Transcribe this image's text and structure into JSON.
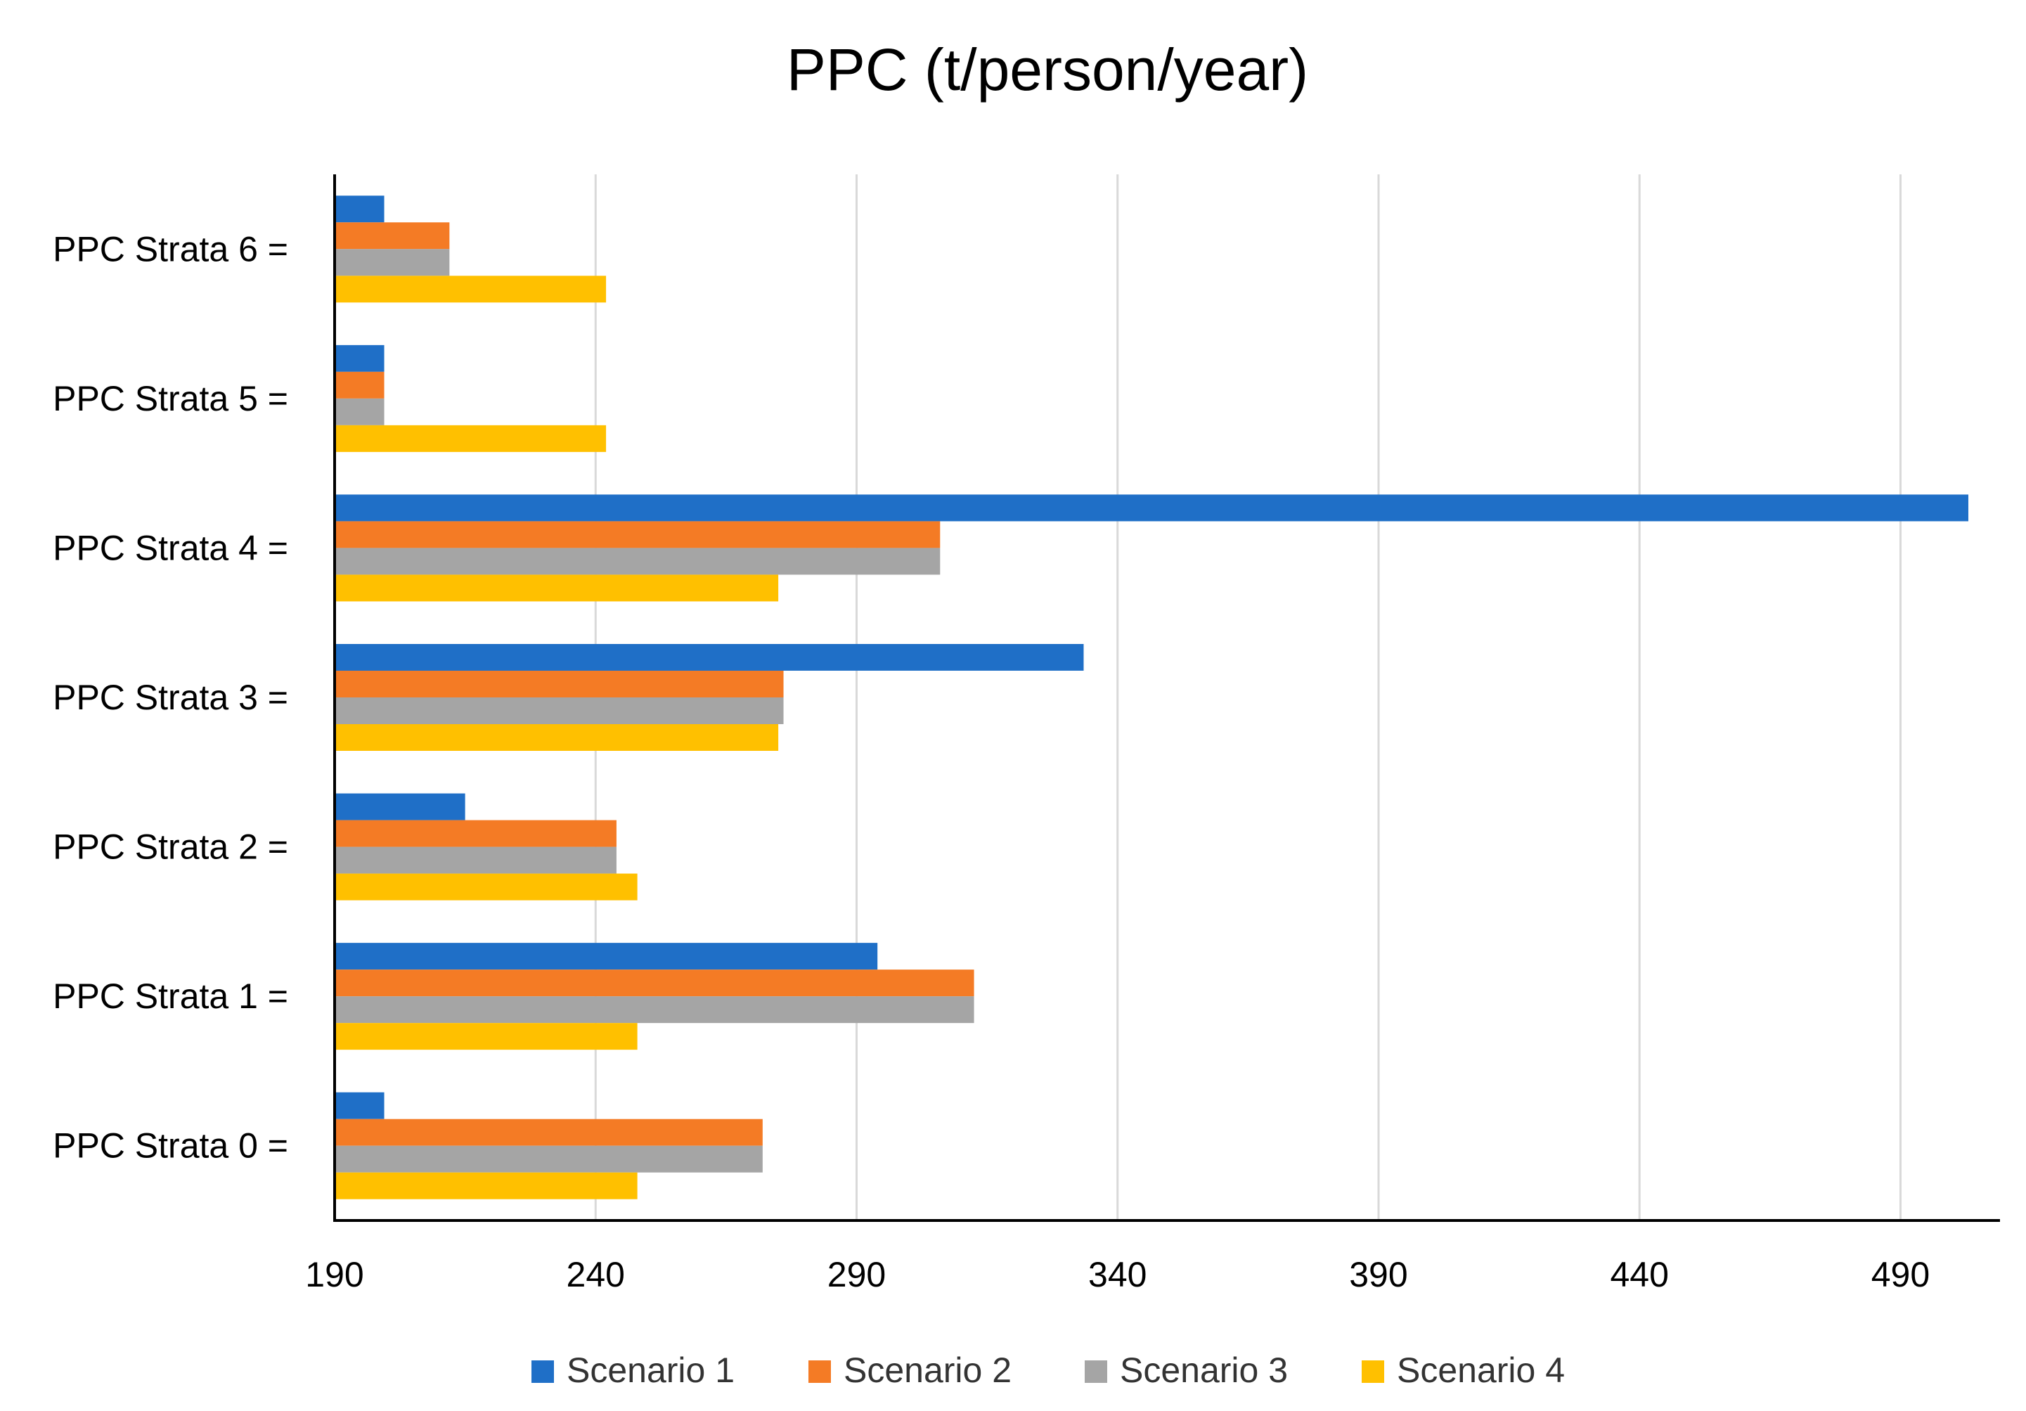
{
  "chart_data": {
    "type": "bar",
    "orientation": "horizontal",
    "title": "PPC (t/person/year)",
    "xlabel": "",
    "ylabel": "",
    "xlim": [
      190,
      503
    ],
    "xticks": [
      190,
      240,
      290,
      340,
      390,
      440,
      490
    ],
    "grid": true,
    "legend_position": "bottom",
    "categories": [
      "PPC Strata 6 =",
      "PPC Strata 5 =",
      "PPC Strata 4 =",
      "PPC Strata 3 =",
      "PPC Strata 2 =",
      "PPC Strata 1 =",
      "PPC Strata 0 ="
    ],
    "series": [
      {
        "name": "Scenario 1",
        "color": "#1f6fc7",
        "values": [
          199.5,
          199.5,
          503,
          333.5,
          215,
          294,
          199.5
        ]
      },
      {
        "name": "Scenario 2",
        "color": "#f47b25",
        "values": [
          212,
          199.5,
          306,
          276,
          244,
          312.5,
          272
        ]
      },
      {
        "name": "Scenario 3",
        "color": "#a5a5a5",
        "values": [
          212,
          199.5,
          306,
          276,
          244,
          312.5,
          272
        ]
      },
      {
        "name": "Scenario 4",
        "color": "#ffc000",
        "values": [
          242,
          242,
          275,
          275,
          248,
          248,
          248
        ]
      }
    ]
  }
}
